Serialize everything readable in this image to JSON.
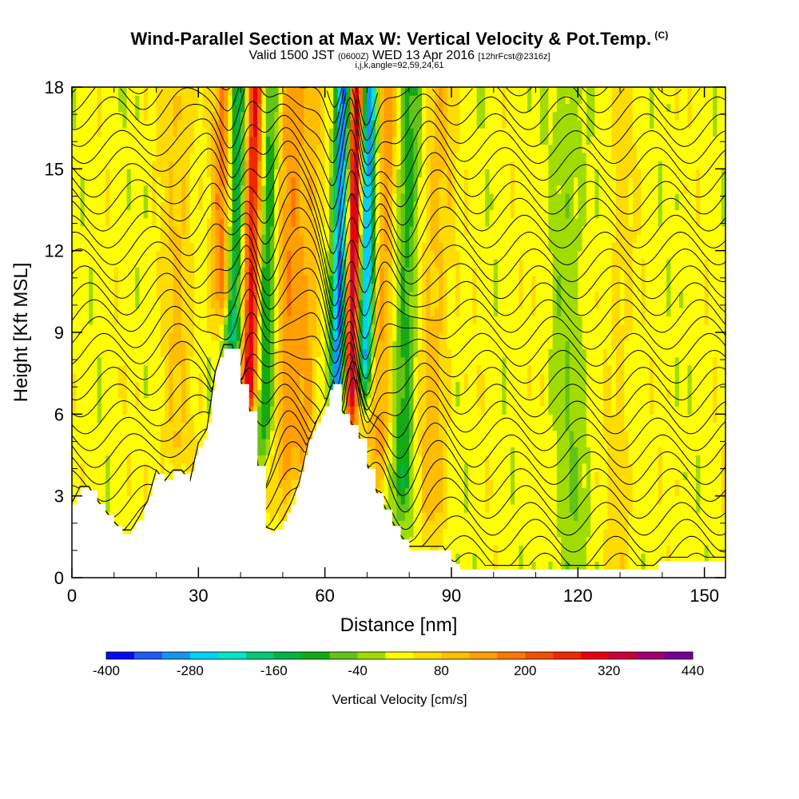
{
  "header": {
    "title": "Wind-Parallel Section at Max W: Vertical Velocity & Pot.Temp.",
    "copyright": "(C)",
    "subtitle_a": "Valid 1500 JST",
    "subtitle_b": "(0600Z)",
    "subtitle_c": "WED 13 Apr 2016",
    "subtitle_d": "[12hrFcst@2316z]",
    "subtitle2": "i,j,k,angle=92,59,24,61"
  },
  "chart_data": {
    "type": "heatmap",
    "title": "Wind-Parallel Section at Max W: Vertical Velocity & Pot.Temp.",
    "xlabel": "Distance [nm]",
    "ylabel": "Height [Kft MSL]",
    "xlim": [
      0,
      155
    ],
    "ylim": [
      0,
      18
    ],
    "x_ticks": [
      0,
      30,
      60,
      90,
      120,
      150
    ],
    "y_ticks": [
      0,
      3,
      6,
      9,
      12,
      15,
      18
    ],
    "colorbar": {
      "title": "Vertical Velocity [cm/s]",
      "labels": [
        -400,
        -280,
        -160,
        -40,
        80,
        200,
        320,
        440
      ],
      "bounds": [
        -400,
        -360,
        -320,
        -280,
        -240,
        -200,
        -160,
        -120,
        -80,
        -40,
        0,
        40,
        80,
        120,
        160,
        200,
        240,
        280,
        320,
        360,
        400,
        440
      ],
      "colors": [
        "#0a0af0",
        "#1e5af5",
        "#1496f0",
        "#00d2f5",
        "#00e6c8",
        "#00c878",
        "#00b446",
        "#14aa14",
        "#64c314",
        "#a0dc00",
        "#ffff00",
        "#ffdc00",
        "#ffbe00",
        "#ffa000",
        "#ff7800",
        "#f05000",
        "#f02800",
        "#e60014",
        "#c8003c",
        "#a0006e",
        "#780096"
      ]
    },
    "terrain": {
      "x": [
        0,
        2,
        4,
        6,
        8,
        10,
        12,
        14,
        16,
        18,
        20,
        22,
        24,
        26,
        28,
        30,
        32,
        34,
        36,
        38,
        40,
        42,
        44,
        46,
        48,
        50,
        52,
        54,
        56,
        58,
        60,
        62,
        64,
        66,
        68,
        70,
        72,
        74,
        76,
        78,
        80,
        82,
        84,
        86,
        88,
        90,
        92,
        94,
        96,
        98,
        100,
        110,
        120,
        130,
        138,
        140,
        150,
        155
      ],
      "height": [
        2.6,
        3.2,
        3.2,
        2.7,
        2.3,
        1.9,
        1.6,
        1.6,
        2.1,
        2.7,
        3.8,
        3.4,
        3.8,
        3.8,
        3.4,
        4.8,
        5.3,
        7.4,
        8.4,
        8.4,
        7.1,
        6.1,
        4.1,
        1.7,
        1.6,
        2.0,
        2.6,
        3.4,
        4.8,
        5.6,
        6.2,
        7.1,
        6.0,
        5.6,
        5.1,
        4.0,
        3.1,
        2.5,
        1.9,
        1.4,
        1.0,
        1.0,
        1.0,
        1.0,
        1.0,
        0.5,
        0.3,
        0.3,
        0.3,
        0.3,
        0.3,
        0.3,
        0.3,
        0.3,
        0.3,
        0.6,
        0.6,
        0.6
      ]
    },
    "features": [
      {
        "x": 36,
        "height": 18,
        "bottom": 8.4,
        "w": 3.0,
        "amp": 220
      },
      {
        "x": 38,
        "height": 18,
        "bottom": 7.0,
        "w": 2.5,
        "amp": -300
      },
      {
        "x": 42,
        "height": 18,
        "bottom": 5.0,
        "w": 2.5,
        "amp": 320
      },
      {
        "x": 45,
        "height": 18,
        "bottom": 4.0,
        "w": 2.5,
        "amp": -180
      },
      {
        "x": 50,
        "height": 18,
        "bottom": 2.0,
        "w": 3.0,
        "amp": 120
      },
      {
        "x": 55,
        "height": 18,
        "bottom": 3.0,
        "w": 3.0,
        "amp": 90
      },
      {
        "x": 63,
        "height": 18,
        "bottom": 5.0,
        "w": 2.0,
        "amp": -380
      },
      {
        "x": 66,
        "height": 18,
        "bottom": 5.0,
        "w": 2.0,
        "amp": 400
      },
      {
        "x": 69,
        "height": 18,
        "bottom": 6.0,
        "w": 2.0,
        "amp": -360
      },
      {
        "x": 73,
        "height": 18,
        "bottom": 3.0,
        "w": 3.0,
        "amp": 120
      },
      {
        "x": 78,
        "height": 18,
        "bottom": 1.5,
        "w": 3.0,
        "amp": -120
      },
      {
        "x": 85,
        "height": 18,
        "bottom": 1.0,
        "w": 3.5,
        "amp": 80
      },
      {
        "x": 24,
        "height": 11,
        "bottom": 3.0,
        "w": 4.0,
        "amp": 60
      }
    ]
  }
}
